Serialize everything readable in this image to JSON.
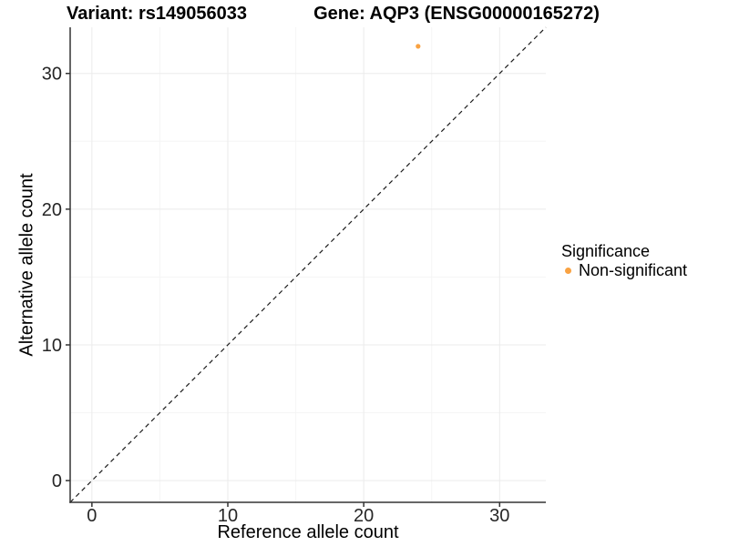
{
  "titles": {
    "left": "Variant: rs149056033",
    "right": "Gene: AQP3 (ENSG00000165272)"
  },
  "axes": {
    "x_label": "Reference allele count",
    "y_label": "Alternative allele count"
  },
  "legend": {
    "title": "Significance",
    "items": [
      {
        "label": "Non-significant",
        "color": "#F9A242",
        "marker": "dot"
      }
    ]
  },
  "colors": {
    "background": "#FFFFFF",
    "axis_line": "#333333",
    "tick_label": "#262626",
    "grid_major": "#EBEBEB",
    "grid_minor": "#F5F5F5",
    "reference_line": "#1A1A1A",
    "point": "#F9A242"
  },
  "chart_data": {
    "type": "scatter",
    "title": "Variant: rs149056033 / Gene: AQP3 (ENSG00000165272)",
    "xlabel": "Reference allele count",
    "ylabel": "Alternative allele count",
    "xlim": [
      -1.6,
      33.4
    ],
    "ylim": [
      -1.6,
      33.4
    ],
    "x_ticks": [
      0,
      10,
      20,
      30
    ],
    "y_ticks": [
      0,
      10,
      20,
      30
    ],
    "x_minor_ticks": [
      5,
      15,
      25
    ],
    "y_minor_ticks": [
      5,
      15,
      25
    ],
    "grid": "major+minor",
    "legend_position": "right",
    "series": [
      {
        "name": "Non-significant",
        "color": "#F9A242",
        "points": [
          {
            "x": 24,
            "y": 32
          }
        ]
      }
    ],
    "reference_line": {
      "type": "abline",
      "slope": 1,
      "intercept": 0,
      "style": "dashed",
      "color": "#1A1A1A"
    }
  }
}
